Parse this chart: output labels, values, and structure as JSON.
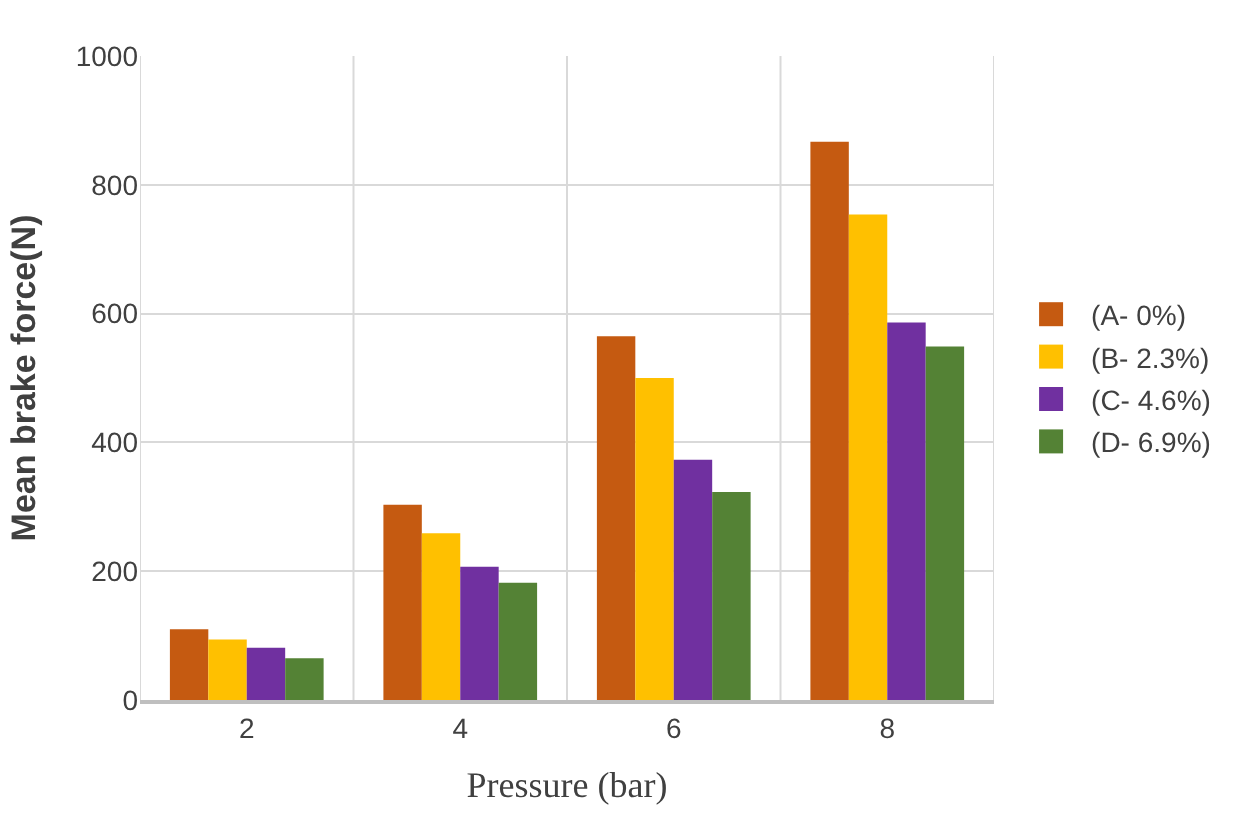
{
  "chart_data": {
    "type": "bar",
    "xlabel": "Pressure (bar)",
    "ylabel": "Mean brake force(N)",
    "categories": [
      "2",
      "4",
      "6",
      "8"
    ],
    "series": [
      {
        "name": "(A- 0%)",
        "color": "#c55a11",
        "values": [
          110,
          303,
          565,
          867
        ]
      },
      {
        "name": "(B- 2.3%)",
        "color": "#ffc000",
        "values": [
          94,
          259,
          500,
          754
        ]
      },
      {
        "name": "(C- 4.6%)",
        "color": "#7030a0",
        "values": [
          81,
          207,
          373,
          586
        ]
      },
      {
        "name": "(D- 6.9%)",
        "color": "#548235",
        "values": [
          65,
          182,
          323,
          549
        ]
      }
    ],
    "ylim": [
      0,
      1000
    ],
    "yticks": [
      0,
      200,
      400,
      600,
      800,
      1000
    ],
    "grid": true,
    "legend": "right"
  }
}
